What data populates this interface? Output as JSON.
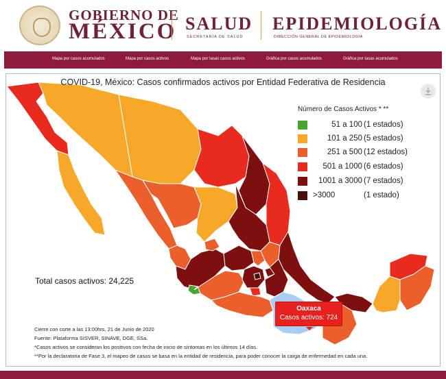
{
  "header": {
    "gobierno_line1": "GOBIERNO DE",
    "gobierno_line2": "MÉXICO",
    "salud_title": "SALUD",
    "salud_sub": "SECRETARÍA DE SALUD",
    "epi_title": "EPIDEMIOLOGÍA",
    "epi_sub": "DIRECCIÓN GENERAL DE EPIDEMIOLOGÍA"
  },
  "nav": {
    "items": [
      "Mapa por casos acumulados",
      "Mapa por casos activos",
      "Mapa por tasas casos activos",
      "Gráfica por casos acumulados",
      "Gráfica por tasas acumulados"
    ]
  },
  "map": {
    "title": "COVID-19, México: Casos confirmados activos por Entidad Federativa de Residencia",
    "legend": {
      "title": "Número de Casos Activos * **",
      "items": [
        {
          "range": "51 a 100",
          "count": "(1 estados)",
          "color": "#46a72e"
        },
        {
          "range": "101 a 250",
          "count": "(5 estados)",
          "color": "#f7a829"
        },
        {
          "range": "251 a 500",
          "count": "(12 estados)",
          "color": "#ea5f2a"
        },
        {
          "range": "501 a 1000",
          "count": "(6 estados)",
          "color": "#e82a1f"
        },
        {
          "range": "1001 a 3000",
          "count": "(7 estados)",
          "color": "#7e0f11"
        },
        {
          "range": ">3000",
          "count": "(1 estado)",
          "color": "#4a100d"
        }
      ]
    },
    "total": "Total casos activos: 24,225",
    "tooltip": {
      "state": "Oaxaca",
      "value": "Casos activos: 724",
      "selected_color": "#a9cdf3"
    },
    "notes": [
      "Cierre con corte a las 13:00hrs, 21 de Junio de 2020",
      "Fuente: Plataforma SISVER, SINAVE, DGE, SSa.",
      "*Casos activos se consideran los positivos con fecha de inicio de síntomas en los últimos 14 días.",
      "**Por la declaratoria de Fase 3, el mapeo de casos se basa en la entidad de residencia, para poder conocer la carga de enfermedad en cada una."
    ]
  },
  "colors": {
    "brand": "#8e1b3b",
    "green": "#46a72e",
    "yellow": "#f7a829",
    "orange": "#ea5f2a",
    "red": "#e82a1f",
    "darkred": "#7e0f11",
    "darkest": "#4a100d"
  }
}
